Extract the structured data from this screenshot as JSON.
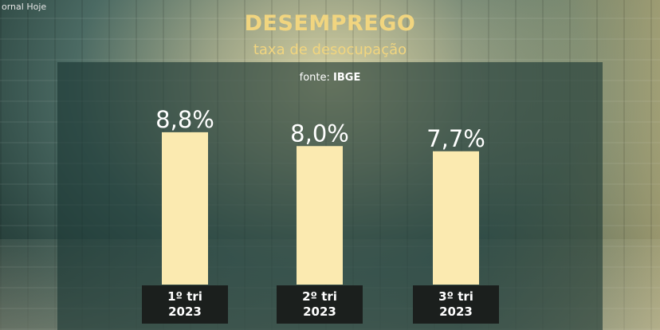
{
  "channel_label": "ornal Hoje",
  "colors": {
    "bar": "#fbeab0",
    "label_box": "#1b1f1d",
    "title": "#f1d57f",
    "panel": "#1c3734"
  },
  "chart_data": {
    "type": "bar",
    "title": "DESEMPREGO",
    "subtitle": "taxa de desocupação",
    "source_prefix": "fonte:",
    "source_name": "IBGE",
    "categories": [
      [
        "1º tri",
        "2023"
      ],
      [
        "2º tri",
        "2023"
      ],
      [
        "3º tri",
        "2023"
      ]
    ],
    "values": [
      8.8,
      8.0,
      7.7
    ],
    "value_labels": [
      "8,8%",
      "8,0%",
      "7,7%"
    ],
    "ylim": [
      0,
      9.9
    ],
    "grid": false,
    "legend": "none"
  }
}
